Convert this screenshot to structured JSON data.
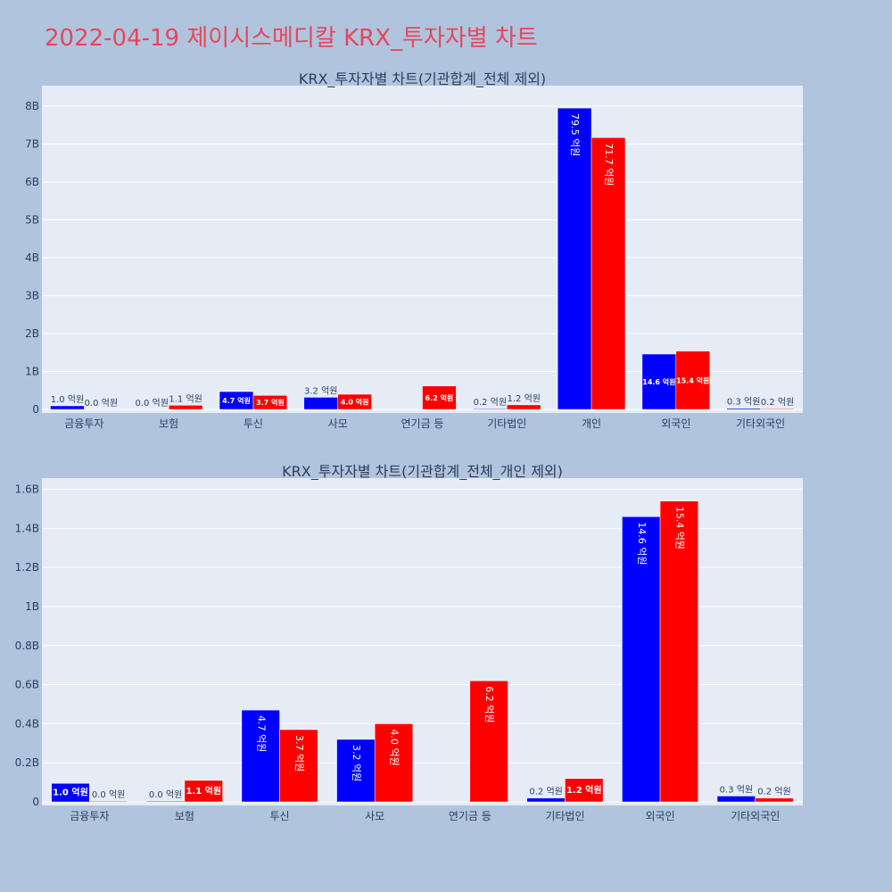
{
  "title": "2022-04-19 제이시스메디칼 KRX_투자자별 차트",
  "colors": {
    "background": "#b0c4de",
    "plot_bg": "#e5ecf6",
    "title": "#e8465a",
    "buy": "#0000ff",
    "sell": "#ff0000",
    "text": "#2a3f5f"
  },
  "chart_data": [
    {
      "type": "bar",
      "title": "KRX_투자자별 차트(기관합계_전체 제외)",
      "categories": [
        "금융투자",
        "보험",
        "투신",
        "사모",
        "연기금 등",
        "기타법인",
        "개인",
        "외국인",
        "기타외국인"
      ],
      "series": [
        {
          "values": [
            0.095,
            0.004,
            0.47,
            0.32,
            0.0,
            0.02,
            7.95,
            1.46,
            0.03
          ],
          "labels": [
            "1.0 억원",
            "0.0 억원",
            "4.7 억원",
            "3.2 억원",
            "",
            "0.2 억원",
            "79.5 억원",
            "14.6 억원",
            "0.3 억원"
          ]
        },
        {
          "values": [
            0.004,
            0.11,
            0.37,
            0.4,
            0.62,
            0.12,
            7.17,
            1.54,
            0.02
          ],
          "labels": [
            "0.0 억원",
            "1.1 억원",
            "3.7 억원",
            "4.0 억원",
            "6.2 억원",
            "1.2 억원",
            "71.7 억원",
            "15.4 억원",
            "0.2 억원"
          ]
        }
      ],
      "ylim": [
        0,
        8.4
      ],
      "yticks": [
        0,
        1,
        2,
        3,
        4,
        5,
        6,
        7,
        8
      ],
      "ytick_labels": [
        "0",
        "1B",
        "2B",
        "3B",
        "4B",
        "5B",
        "6B",
        "7B",
        "8B"
      ],
      "grid": true,
      "legend": "none"
    },
    {
      "type": "bar",
      "title": "KRX_투자자별 차트(기관합계_전체_개인 제외)",
      "categories": [
        "금융투자",
        "보험",
        "투신",
        "사모",
        "연기금 등",
        "기타법인",
        "외국인",
        "기타외국인"
      ],
      "series": [
        {
          "values": [
            0.095,
            0.004,
            0.47,
            0.32,
            0.0,
            0.02,
            1.46,
            0.03
          ],
          "labels": [
            "1.0 억원",
            "0.0 억원",
            "4.7 억원",
            "3.2 억원",
            "",
            "0.2 억원",
            "14.6 억원",
            "0.3 억원"
          ]
        },
        {
          "values": [
            0.004,
            0.11,
            0.37,
            0.4,
            0.62,
            0.12,
            1.54,
            0.02
          ],
          "labels": [
            "0.0 억원",
            "1.1 억원",
            "3.7 억원",
            "4.0 억원",
            "6.2 억원",
            "1.2 억원",
            "15.4 억원",
            "0.2 억원"
          ]
        }
      ],
      "ylim": [
        0,
        1.63
      ],
      "yticks": [
        0,
        0.2,
        0.4,
        0.6,
        0.8,
        1.0,
        1.2,
        1.4,
        1.6
      ],
      "ytick_labels": [
        "0",
        "0.2B",
        "0.4B",
        "0.6B",
        "0.8B",
        "1B",
        "1.2B",
        "1.4B",
        "1.6B"
      ],
      "grid": true,
      "legend": "none"
    }
  ]
}
